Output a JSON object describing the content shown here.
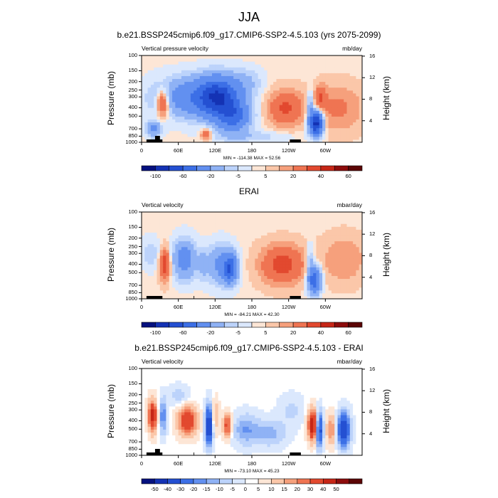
{
  "title": "JJA",
  "panels": [
    {
      "title": "b.e21.BSSP245cmip6.f09_g17.CMIP6-SSP2-4.5.103 (yrs 2075-2099)",
      "left_label": "Vertical pressure velocity",
      "right_label": "mb/day",
      "stats": "MIN = -114.38  MAX = 52.56",
      "palette": [
        "#05117f",
        "#1432b4",
        "#2450d2",
        "#3c6fe6",
        "#6290f0",
        "#8fb2f5",
        "#bcd3fb",
        "#dbe8fd",
        "#fde6d6",
        "#fbc7a9",
        "#f6a07c",
        "#ef7452",
        "#e2492f",
        "#c62617",
        "#8d0c0c",
        "#5c0505"
      ],
      "levels": [
        -100,
        -80,
        -60,
        -40,
        -20,
        -10,
        -5,
        -1,
        1,
        5,
        10,
        20,
        30,
        40,
        60
      ],
      "colorbar_labels": [
        "-100",
        "-60",
        "-20",
        "-5",
        "5",
        "20",
        "40",
        "60"
      ]
    },
    {
      "title": "ERAI",
      "left_label": "Vertical velocity",
      "right_label": "mbar/day",
      "stats": "MIN = -84.21  MAX = 42.30",
      "palette": [
        "#05117f",
        "#1432b4",
        "#2450d2",
        "#3c6fe6",
        "#6290f0",
        "#8fb2f5",
        "#bcd3fb",
        "#dbe8fd",
        "#fde6d6",
        "#fbc7a9",
        "#f6a07c",
        "#ef7452",
        "#e2492f",
        "#c62617",
        "#8d0c0c",
        "#5c0505"
      ],
      "levels": [
        -100,
        -80,
        -60,
        -40,
        -20,
        -10,
        -5,
        -1,
        1,
        5,
        10,
        20,
        30,
        40,
        60
      ],
      "colorbar_labels": [
        "-100",
        "-60",
        "-20",
        "-5",
        "5",
        "20",
        "40",
        "60"
      ]
    },
    {
      "title": "b.e21.BSSP245cmip6.f09_g17.CMIP6-SSP2-4.5.103 - ERAI",
      "left_label": "Vertical velocity",
      "right_label": "mbar/day",
      "stats": "MIN = -73.10  MAX = 45.23",
      "palette": [
        "#05117f",
        "#1432b4",
        "#2450d2",
        "#3c6fe6",
        "#6290f0",
        "#8fb2f5",
        "#bcd3fb",
        "#dbe8fd",
        "#ffffff",
        "#fde6d6",
        "#fbc7a9",
        "#f6a07c",
        "#ef7452",
        "#e2492f",
        "#c62617",
        "#8d0c0c",
        "#5c0505"
      ],
      "levels": [
        -50,
        -40,
        -30,
        -20,
        -15,
        -10,
        -5,
        -1,
        1,
        5,
        10,
        15,
        20,
        30,
        40,
        50
      ],
      "colorbar_labels": [
        "-50",
        "-40",
        "-30",
        "-20",
        "-15",
        "-10",
        "-5",
        "0",
        "5",
        "10",
        "15",
        "20",
        "30",
        "40",
        "50"
      ]
    }
  ],
  "chart_data": [
    {
      "type": "heatmap",
      "title": "b.e21.BSSP245cmip6.f09_g17.CMIP6-SSP2-4.5.103 (yrs 2075-2099)",
      "xlabel": "",
      "ylabel": "Pressure (mb)",
      "y2label": "Height (km)",
      "x_ticks": [
        "0",
        "60E",
        "120E",
        "180",
        "120W",
        "60W"
      ],
      "y_ticks": [
        "100",
        "150",
        "200",
        "250",
        "300",
        "400",
        "500",
        "700",
        "850",
        "1000"
      ],
      "y2_ticks": [
        "4",
        "8",
        "12",
        "16"
      ],
      "x_range": [
        0,
        360
      ],
      "y_range": [
        1000,
        100
      ],
      "min": -114.38,
      "max": 52.56,
      "features": [
        {
          "lon": 35,
          "p": 350,
          "value": 30,
          "w": 10,
          "h": 0.35
        },
        {
          "lon": 20,
          "p": 700,
          "value": -25,
          "w": 12,
          "h": 0.2
        },
        {
          "lon": 90,
          "p": 300,
          "value": -35,
          "w": 60,
          "h": 0.5
        },
        {
          "lon": 125,
          "p": 300,
          "value": -60,
          "w": 30,
          "h": 0.5
        },
        {
          "lon": 150,
          "p": 500,
          "value": -45,
          "w": 25,
          "h": 0.4
        },
        {
          "lon": 105,
          "p": 800,
          "value": 20,
          "w": 8,
          "h": 0.15
        },
        {
          "lon": 170,
          "p": 200,
          "value": -10,
          "w": 25,
          "h": 0.35
        },
        {
          "lon": 235,
          "p": 400,
          "value": 22,
          "w": 28,
          "h": 0.45
        },
        {
          "lon": 285,
          "p": 600,
          "value": -90,
          "w": 10,
          "h": 0.3
        },
        {
          "lon": 275,
          "p": 400,
          "value": -20,
          "w": 6,
          "h": 0.4
        },
        {
          "lon": 292,
          "p": 300,
          "value": 18,
          "w": 8,
          "h": 0.3
        },
        {
          "lon": 320,
          "p": 400,
          "value": 12,
          "w": 40,
          "h": 0.6
        },
        {
          "lon": 180,
          "p": 850,
          "value": -8,
          "w": 60,
          "h": 0.15
        }
      ]
    },
    {
      "type": "heatmap",
      "title": "ERAI",
      "xlabel": "",
      "ylabel": "Pressure (mb)",
      "y2label": "Height (km)",
      "x_ticks": [
        "0",
        "60E",
        "120E",
        "180",
        "120W",
        "60W"
      ],
      "y_ticks": [
        "100",
        "150",
        "200",
        "250",
        "300",
        "400",
        "500",
        "700",
        "850",
        "1000"
      ],
      "y2_ticks": [
        "4",
        "8",
        "12",
        "16"
      ],
      "x_range": [
        0,
        360
      ],
      "y_range": [
        1000,
        100
      ],
      "min": -84.21,
      "max": 42.3,
      "features": [
        {
          "lon": 38,
          "p": 400,
          "value": 30,
          "w": 8,
          "h": 0.4
        },
        {
          "lon": 70,
          "p": 350,
          "value": -30,
          "w": 18,
          "h": 0.5
        },
        {
          "lon": 100,
          "p": 400,
          "value": -10,
          "w": 8,
          "h": 0.4
        },
        {
          "lon": 130,
          "p": 400,
          "value": -25,
          "w": 22,
          "h": 0.5
        },
        {
          "lon": 145,
          "p": 450,
          "value": -50,
          "w": 10,
          "h": 0.35
        },
        {
          "lon": 230,
          "p": 400,
          "value": 25,
          "w": 35,
          "h": 0.5
        },
        {
          "lon": 282,
          "p": 600,
          "value": -55,
          "w": 10,
          "h": 0.35
        },
        {
          "lon": 275,
          "p": 350,
          "value": -12,
          "w": 6,
          "h": 0.4
        },
        {
          "lon": 330,
          "p": 350,
          "value": 10,
          "w": 35,
          "h": 0.6
        },
        {
          "lon": 15,
          "p": 300,
          "value": -8,
          "w": 15,
          "h": 0.4
        }
      ]
    },
    {
      "type": "heatmap",
      "title": "b.e21.BSSP245cmip6.f09_g17.CMIP6-SSP2-4.5.103 - ERAI",
      "xlabel": "",
      "ylabel": "Pressure (mb)",
      "y2label": "Height (km)",
      "x_ticks": [
        "0",
        "60E",
        "120E",
        "180",
        "120W",
        "60W"
      ],
      "y_ticks": [
        "100",
        "150",
        "200",
        "250",
        "300",
        "400",
        "500",
        "700",
        "850",
        "1000"
      ],
      "y2_ticks": [
        "4",
        "8",
        "12",
        "16"
      ],
      "x_range": [
        0,
        360
      ],
      "y_range": [
        1000,
        100
      ],
      "min": -73.1,
      "max": 45.23,
      "features": [
        {
          "lon": 18,
          "p": 350,
          "value": 35,
          "w": 7,
          "h": 0.4
        },
        {
          "lon": 35,
          "p": 350,
          "value": -20,
          "w": 6,
          "h": 0.45
        },
        {
          "lon": 75,
          "p": 400,
          "value": 30,
          "w": 15,
          "h": 0.35
        },
        {
          "lon": 60,
          "p": 200,
          "value": -8,
          "w": 15,
          "h": 0.25
        },
        {
          "lon": 110,
          "p": 450,
          "value": -45,
          "w": 6,
          "h": 0.5
        },
        {
          "lon": 120,
          "p": 350,
          "value": 12,
          "w": 6,
          "h": 0.4
        },
        {
          "lon": 140,
          "p": 450,
          "value": 25,
          "w": 7,
          "h": 0.3
        },
        {
          "lon": 170,
          "p": 500,
          "value": -15,
          "w": 20,
          "h": 0.4
        },
        {
          "lon": 210,
          "p": 550,
          "value": -12,
          "w": 25,
          "h": 0.35
        },
        {
          "lon": 280,
          "p": 450,
          "value": 40,
          "w": 8,
          "h": 0.4
        },
        {
          "lon": 290,
          "p": 500,
          "value": -40,
          "w": 6,
          "h": 0.45
        },
        {
          "lon": 330,
          "p": 500,
          "value": -40,
          "w": 10,
          "h": 0.45
        },
        {
          "lon": 310,
          "p": 500,
          "value": 15,
          "w": 8,
          "h": 0.4
        },
        {
          "lon": 245,
          "p": 300,
          "value": -6,
          "w": 20,
          "h": 0.4
        }
      ]
    }
  ]
}
